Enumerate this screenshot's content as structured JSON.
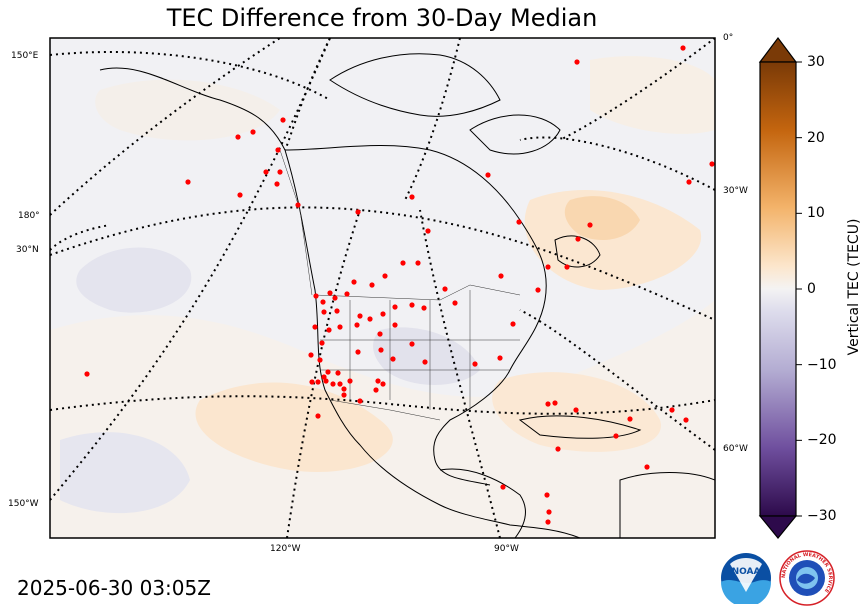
{
  "title": "TEC Difference from 30-Day Median",
  "timestamp": "2025-06-30 03:05Z",
  "map": {
    "left_labels": [
      "150°E",
      "180°",
      "30°N",
      "150°W"
    ],
    "right_labels": [
      "0°",
      "30°W",
      "60°W"
    ],
    "bottom_labels": [
      "120°W",
      "90°W"
    ]
  },
  "colorbar": {
    "label": "Vertical TEC (TECU)",
    "ticks": [
      "30",
      "20",
      "10",
      "0",
      "−10",
      "−20",
      "−30"
    ],
    "min": -30,
    "max": 30,
    "colors": {
      "max": "#7a3a07",
      "positive": "#f0a65a",
      "neutral": "#f2f1f1",
      "negative": "#9b94c4",
      "min": "#2d0a4b"
    }
  },
  "logos": {
    "noaa": "NOAA",
    "nws": "NATIONAL WEATHER SERVICE"
  },
  "station_color": "#ff0000"
}
